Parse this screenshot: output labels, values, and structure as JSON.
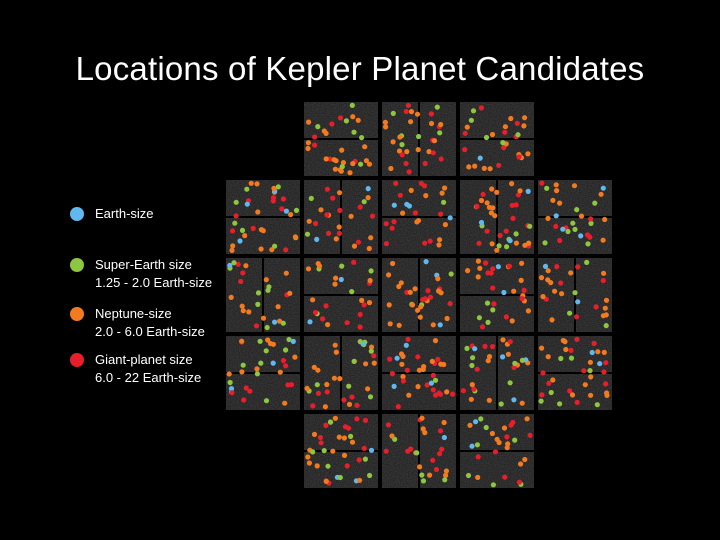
{
  "title": "Locations of Kepler Planet Candidates",
  "legend": {
    "items": [
      {
        "name": "Earth-size",
        "range": "",
        "color": "#5fb8ef"
      },
      {
        "name": "Super-Earth size",
        "range": "1.25 - 2.0 Earth-size",
        "color": "#8dc63f"
      },
      {
        "name": "Neptune-size",
        "range": "2.0 - 6.0 Earth-size",
        "color": "#f47a20"
      },
      {
        "name": "Giant-planet size",
        "range": "6.0 - 22 Earth-size",
        "color": "#e81e2b"
      }
    ]
  },
  "field": {
    "icon": "kepler-ccd-field-of-view",
    "background_color": "#1b1b1b"
  }
}
